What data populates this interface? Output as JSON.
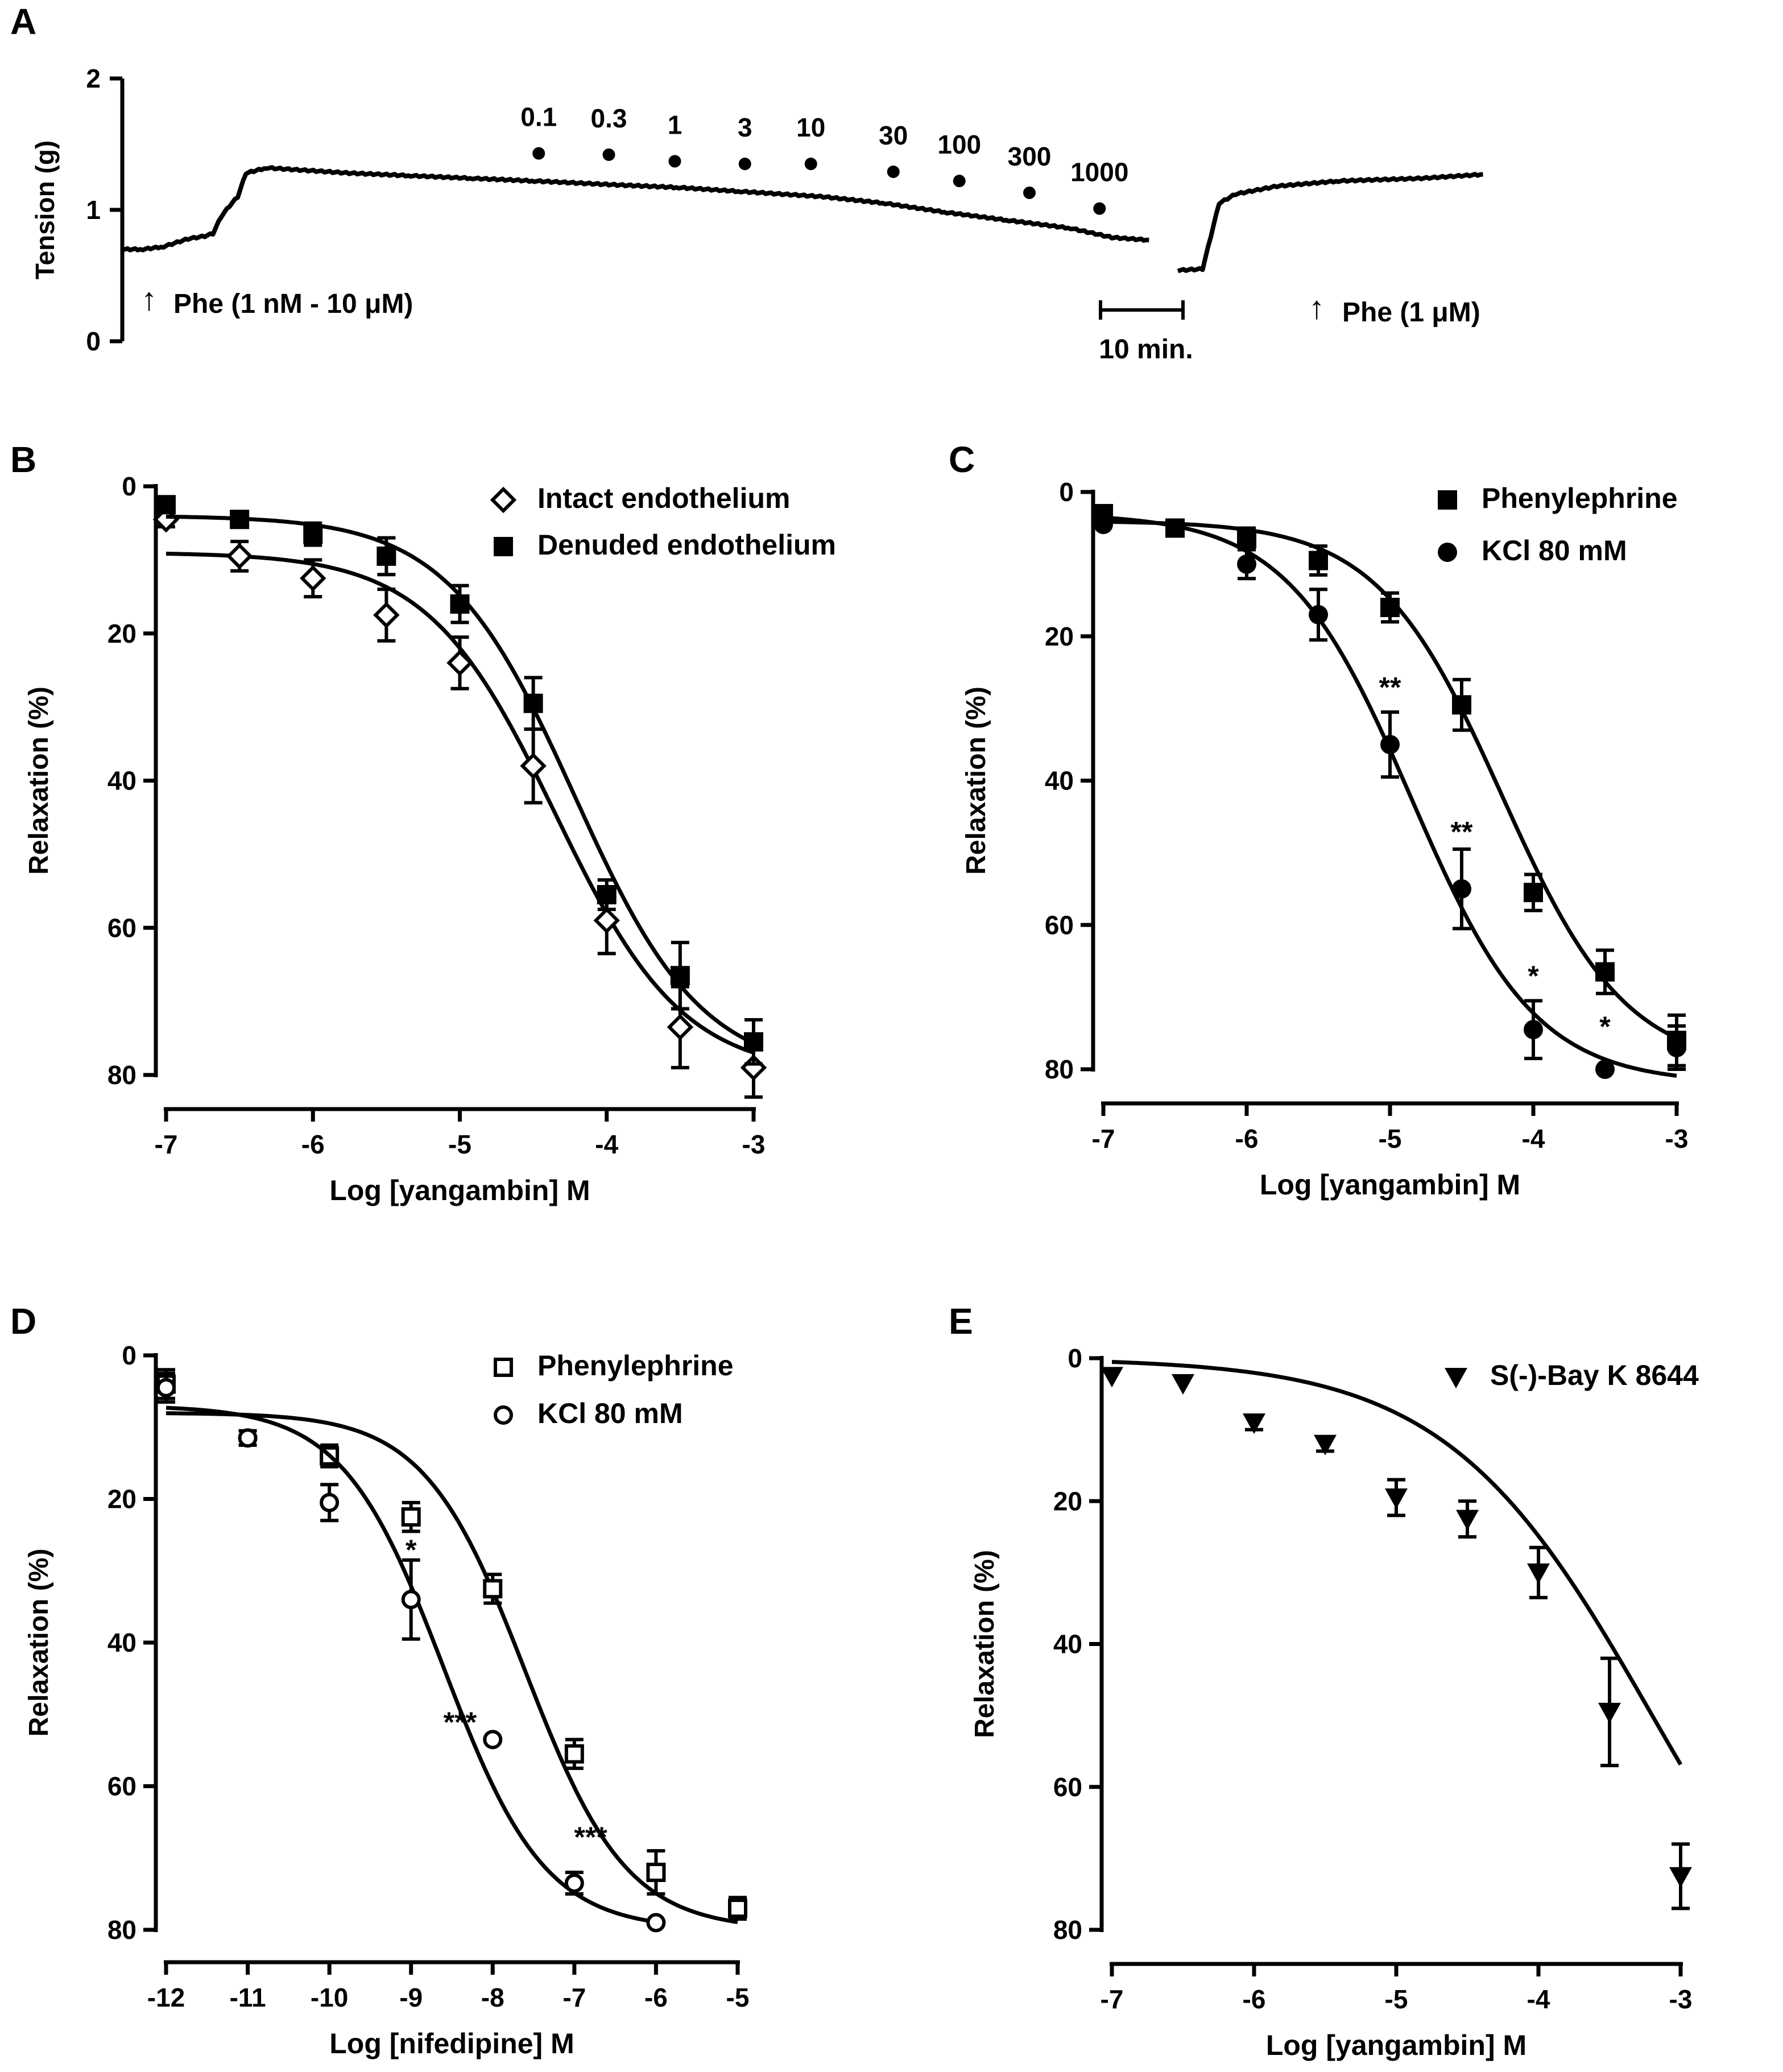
{
  "colors": {
    "ink": "#000000",
    "background": "#ffffff"
  },
  "chart_data": [
    {
      "panel": "A",
      "type": "line",
      "ylabel": "Tension (g)",
      "ylim": [
        0,
        2
      ],
      "yticks": [
        "0",
        "1",
        "2"
      ],
      "trace": {
        "t_min": [
          0,
          5,
          10,
          16,
          20,
          22,
          24,
          26,
          28,
          30,
          35,
          45,
          55,
          70,
          85,
          100,
          120,
          135,
          150,
          170,
          185,
          200,
          215,
          230,
          240,
          249
        ],
        "tension_g": [
          0.7,
          0.7,
          0.72,
          0.78,
          0.8,
          0.82,
          0.95,
          1.03,
          1.1,
          1.28,
          1.32,
          1.3,
          1.28,
          1.26,
          1.24,
          1.22,
          1.19,
          1.17,
          1.14,
          1.1,
          1.05,
          0.98,
          0.92,
          0.86,
          0.79,
          0.77
        ]
      },
      "trace2": {
        "t_min": [
          256,
          262,
          264,
          266,
          270,
          280,
          295,
          315,
          330
        ],
        "tension_g": [
          0.54,
          0.55,
          0.8,
          1.05,
          1.12,
          1.18,
          1.22,
          1.24,
          1.27
        ]
      },
      "doses": [
        {
          "label": "0.1",
          "t_min": 101,
          "tension_g": 1.43
        },
        {
          "label": "0.3",
          "t_min": 118,
          "tension_g": 1.42
        },
        {
          "label": "1",
          "t_min": 134,
          "tension_g": 1.37
        },
        {
          "label": "3",
          "t_min": 151,
          "tension_g": 1.35
        },
        {
          "label": "10",
          "t_min": 167,
          "tension_g": 1.35
        },
        {
          "label": "30",
          "t_min": 187,
          "tension_g": 1.29
        },
        {
          "label": "100",
          "t_min": 203,
          "tension_g": 1.22
        },
        {
          "label": "300",
          "t_min": 220,
          "tension_g": 1.13
        },
        {
          "label": "1000",
          "t_min": 237,
          "tension_g": 1.01
        }
      ],
      "annotations": {
        "arrow1": "↑",
        "phe1": "Phe (1 nM - 10 μM)",
        "arrow2": "↑",
        "phe2": "Phe (1 μM)",
        "scale": "10 min."
      }
    },
    {
      "panel": "B",
      "type": "line",
      "xlabel": "Log [yangambin] M",
      "ylabel": "Relaxation (%)",
      "xlim": [
        -7,
        -3
      ],
      "ylim": [
        80,
        0
      ],
      "xticks": [
        "-7",
        "-6",
        "-5",
        "-4",
        "-3"
      ],
      "yticks": [
        "0",
        "20",
        "40",
        "60",
        "80"
      ],
      "x": [
        -7,
        -6.5,
        -6,
        -5.5,
        -5,
        -4.5,
        -4,
        -3.5,
        -3
      ],
      "series": [
        {
          "name": "Intact endothelium",
          "marker": "diamond-open",
          "values": [
            4.5,
            9.5,
            12.5,
            17.5,
            24,
            38,
            59,
            73.5,
            79
          ],
          "errors": [
            1,
            2,
            2.5,
            3.5,
            3.5,
            5,
            4.5,
            5.5,
            4
          ],
          "fit": {
            "bottom": 9,
            "top": 80,
            "logEC50": -4.35,
            "hill": 1
          }
        },
        {
          "name": "Denuded endothelium",
          "marker": "square-filled",
          "values": [
            2.5,
            4.5,
            6.5,
            9.5,
            16,
            29.5,
            55.5,
            66.5,
            75.5
          ],
          "errors": [
            0.8,
            1,
            1.5,
            2.5,
            2.5,
            3.5,
            2,
            4.5,
            3
          ],
          "fit": {
            "bottom": 4,
            "top": 80,
            "logEC50": -4.22,
            "hill": 1
          }
        }
      ]
    },
    {
      "panel": "C",
      "type": "line",
      "xlabel": "Log [yangambin] M",
      "ylabel": "Relaxation (%)",
      "xlim": [
        -7,
        -3
      ],
      "ylim": [
        80,
        0
      ],
      "xticks": [
        "-7",
        "-6",
        "-5",
        "-4",
        "-3"
      ],
      "yticks": [
        "0",
        "20",
        "40",
        "60",
        "80"
      ],
      "x": [
        -7,
        -6.5,
        -6,
        -5.5,
        -5,
        -4.5,
        -4,
        -3.5,
        -3
      ],
      "series": [
        {
          "name": "Phenylephrine",
          "marker": "square-filled",
          "values": [
            3,
            5,
            6.5,
            9.5,
            16,
            29.5,
            55.5,
            66.5,
            76
          ],
          "errors": [
            0.8,
            1,
            1.5,
            2,
            2,
            3.5,
            2.5,
            3,
            3.5
          ],
          "fit": {
            "bottom": 4,
            "top": 80,
            "logEC50": -4.22,
            "hill": 1
          }
        },
        {
          "name": "KCl 80 mM",
          "marker": "circle-filled",
          "values": [
            4.5,
            5,
            10,
            17,
            35,
            55,
            74.5,
            80,
            77
          ],
          "errors": [
            0.5,
            0.8,
            2,
            3.5,
            4.5,
            5.5,
            4,
            0.5,
            3
          ],
          "fit": {
            "bottom": 3,
            "top": 82,
            "logEC50": -4.85,
            "hill": 1
          }
        }
      ],
      "annotations": [
        {
          "text": "**",
          "x": -5,
          "y": 27
        },
        {
          "text": "**",
          "x": -4.5,
          "y": 47
        },
        {
          "text": "*",
          "x": -4,
          "y": 67
        },
        {
          "text": "*",
          "x": -3.5,
          "y": 74
        }
      ]
    },
    {
      "panel": "D",
      "type": "line",
      "xlabel": "Log [nifedipine] M",
      "ylabel": "Relaxation (%)",
      "xlim": [
        -12,
        -5
      ],
      "ylim": [
        80,
        0
      ],
      "xticks": [
        "-12",
        "-11",
        "-10",
        "-9",
        "-8",
        "-7",
        "-6",
        "-5"
      ],
      "yticks": [
        "0",
        "20",
        "40",
        "60",
        "80"
      ],
      "series": [
        {
          "name": "Phenylephrine",
          "marker": "square-open",
          "x": [
            -12,
            -10,
            -9,
            -8,
            -7,
            -6,
            -5
          ],
          "values": [
            4,
            14,
            22.5,
            32.5,
            55.5,
            72,
            77
          ],
          "errors": [
            2,
            1.5,
            2,
            2,
            2,
            3,
            1.5
          ],
          "fit": {
            "bottom": 8,
            "top": 80,
            "logEC50": -7.6,
            "hill": 0.7
          }
        },
        {
          "name": "KCl 80 mM",
          "marker": "circle-open",
          "x": [
            -12,
            -11,
            -10,
            -9,
            -8,
            -7,
            -6
          ],
          "values": [
            4.5,
            11.5,
            20.5,
            34,
            53.5,
            73.5,
            79
          ],
          "errors": [
            2,
            1,
            2.5,
            5.5,
            0.5,
            1.5,
            0.5
          ],
          "fit": {
            "bottom": 7,
            "top": 80,
            "logEC50": -8.6,
            "hill": 0.7
          }
        }
      ],
      "annotations": [
        {
          "text": "*",
          "x": -9,
          "y": 27
        },
        {
          "text": "***",
          "x": -8.4,
          "y": 51
        },
        {
          "text": "***",
          "x": -6.8,
          "y": 67
        }
      ]
    },
    {
      "panel": "E",
      "type": "line",
      "xlabel": "Log [yangambin] M",
      "ylabel": "Relaxation (%)",
      "xlim": [
        -7,
        -3
      ],
      "ylim": [
        80,
        0
      ],
      "xticks": [
        "-7",
        "-6",
        "-5",
        "-4",
        "-3"
      ],
      "yticks": [
        "0",
        "20",
        "40",
        "60",
        "80"
      ],
      "x": [
        -7,
        -6.5,
        -6,
        -5.5,
        -5,
        -4.5,
        -4,
        -3.5,
        -3
      ],
      "series": [
        {
          "name": "S(-)-Bay K 8644",
          "marker": "triangle-down-filled",
          "values": [
            2.5,
            3.5,
            9,
            12,
            19.5,
            22.5,
            30,
            49.5,
            72.5
          ],
          "errors": [
            0.5,
            0.5,
            1,
            1,
            2.5,
            2.5,
            3.5,
            7.5,
            4.5
          ],
          "fit": {
            "bottom": 0,
            "top": 100,
            "logEC50": -3.2,
            "hill": 0.6
          }
        }
      ]
    }
  ]
}
